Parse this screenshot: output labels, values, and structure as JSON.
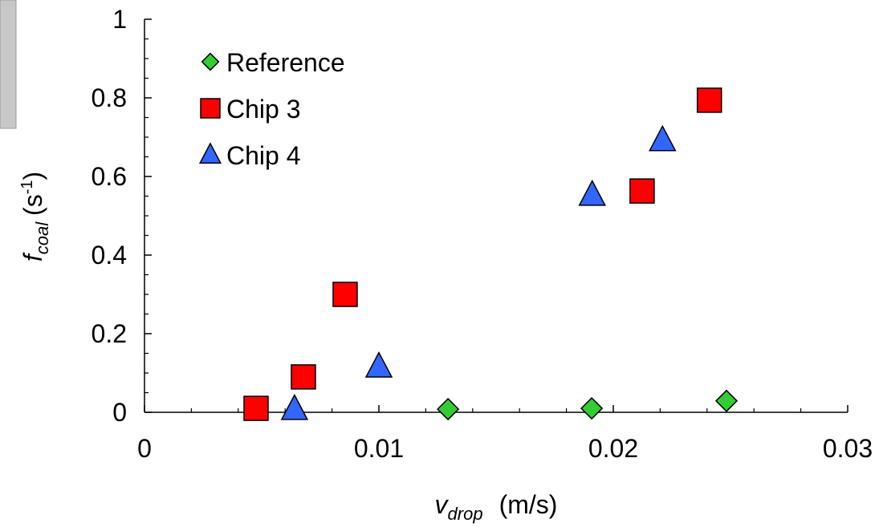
{
  "chart_data": {
    "type": "scatter",
    "xlabel": [
      "v",
      "drop",
      "(m/s)"
    ],
    "ylabel": [
      "f",
      "coal",
      "(s",
      "-1",
      ")"
    ],
    "xlim": [
      0,
      0.03
    ],
    "ylim": [
      0,
      1
    ],
    "xticks": [
      0,
      0.01,
      0.02,
      0.03
    ],
    "yticks": [
      0,
      0.2,
      0.4,
      0.6,
      0.8,
      1
    ],
    "xminorticks": [
      0.002,
      0.004,
      0.006,
      0.008,
      0.012,
      0.014,
      0.016,
      0.018,
      0.022,
      0.024,
      0.026,
      0.028
    ],
    "yminorticks": [
      0.05,
      0.1,
      0.15,
      0.25,
      0.3,
      0.35,
      0.45,
      0.5,
      0.55,
      0.65,
      0.7,
      0.75,
      0.85,
      0.9,
      0.95
    ],
    "legend": "upper left",
    "series": [
      {
        "name": "Reference",
        "color": "#33cc33",
        "marker": "diamond",
        "x": [
          0.01295,
          0.01908,
          0.02483
        ],
        "values": [
          0.008,
          0.01,
          0.029
        ]
      },
      {
        "name": "Chip 3",
        "color": "#ff0000",
        "marker": "square",
        "x": [
          0.00476,
          0.00678,
          0.00856,
          0.02123,
          0.0241
        ],
        "values": [
          0.01,
          0.09,
          0.3,
          0.563,
          0.794
        ]
      },
      {
        "name": "Chip 4",
        "color": "#3366ff",
        "marker": "triangle",
        "x": [
          0.0064,
          0.01,
          0.0191,
          0.0221
        ],
        "values": [
          0.008,
          0.116,
          0.553,
          0.692
        ]
      }
    ]
  }
}
